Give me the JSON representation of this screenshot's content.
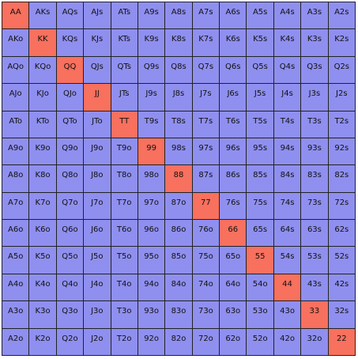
{
  "colors": {
    "pair": "#f8705e",
    "other": "#8f8ff0"
  },
  "rows": [
    [
      "AA",
      "AKs",
      "AQs",
      "AJs",
      "ATs",
      "A9s",
      "A8s",
      "A7s",
      "A6s",
      "A5s",
      "A4s",
      "A3s",
      "A2s"
    ],
    [
      "AKo",
      "KK",
      "KQs",
      "KJs",
      "KTs",
      "K9s",
      "K8s",
      "K7s",
      "K6s",
      "K5s",
      "K4s",
      "K3s",
      "K2s"
    ],
    [
      "AQo",
      "KQo",
      "QQ",
      "QJs",
      "QTs",
      "Q9s",
      "Q8s",
      "Q7s",
      "Q6s",
      "Q5s",
      "Q4s",
      "Q3s",
      "Q2s"
    ],
    [
      "AJo",
      "KJo",
      "QJo",
      "JJ",
      "JTs",
      "J9s",
      "J8s",
      "J7s",
      "J6s",
      "J5s",
      "J4s",
      "J3s",
      "J2s"
    ],
    [
      "ATo",
      "KTo",
      "QTo",
      "JTo",
      "TT",
      "T9s",
      "T8s",
      "T7s",
      "T6s",
      "T5s",
      "T4s",
      "T3s",
      "T2s"
    ],
    [
      "A9o",
      "K9o",
      "Q9o",
      "J9o",
      "T9o",
      "99",
      "98s",
      "97s",
      "96s",
      "95s",
      "94s",
      "93s",
      "92s"
    ],
    [
      "A8o",
      "K8o",
      "Q8o",
      "J8o",
      "T8o",
      "98o",
      "88",
      "87s",
      "86s",
      "85s",
      "84s",
      "83s",
      "82s"
    ],
    [
      "A7o",
      "K7o",
      "Q7o",
      "J7o",
      "T7o",
      "97o",
      "87o",
      "77",
      "76s",
      "75s",
      "74s",
      "73s",
      "72s"
    ],
    [
      "A6o",
      "K6o",
      "Q6o",
      "J6o",
      "T6o",
      "96o",
      "86o",
      "76o",
      "66",
      "65s",
      "64s",
      "63s",
      "62s"
    ],
    [
      "A5o",
      "K5o",
      "Q5o",
      "J5o",
      "T5o",
      "95o",
      "85o",
      "75o",
      "65o",
      "55",
      "54s",
      "53s",
      "52s"
    ],
    [
      "A4o",
      "K4o",
      "Q4o",
      "J4o",
      "T4o",
      "94o",
      "84o",
      "74o",
      "64o",
      "54o",
      "44",
      "43s",
      "42s"
    ],
    [
      "A3o",
      "K3o",
      "Q3o",
      "J3o",
      "T3o",
      "93o",
      "83o",
      "73o",
      "63o",
      "53o",
      "43o",
      "33",
      "32s"
    ],
    [
      "A2o",
      "K2o",
      "Q2o",
      "J2o",
      "T2o",
      "92o",
      "82o",
      "72o",
      "62o",
      "52o",
      "42o",
      "32o",
      "22"
    ]
  ]
}
